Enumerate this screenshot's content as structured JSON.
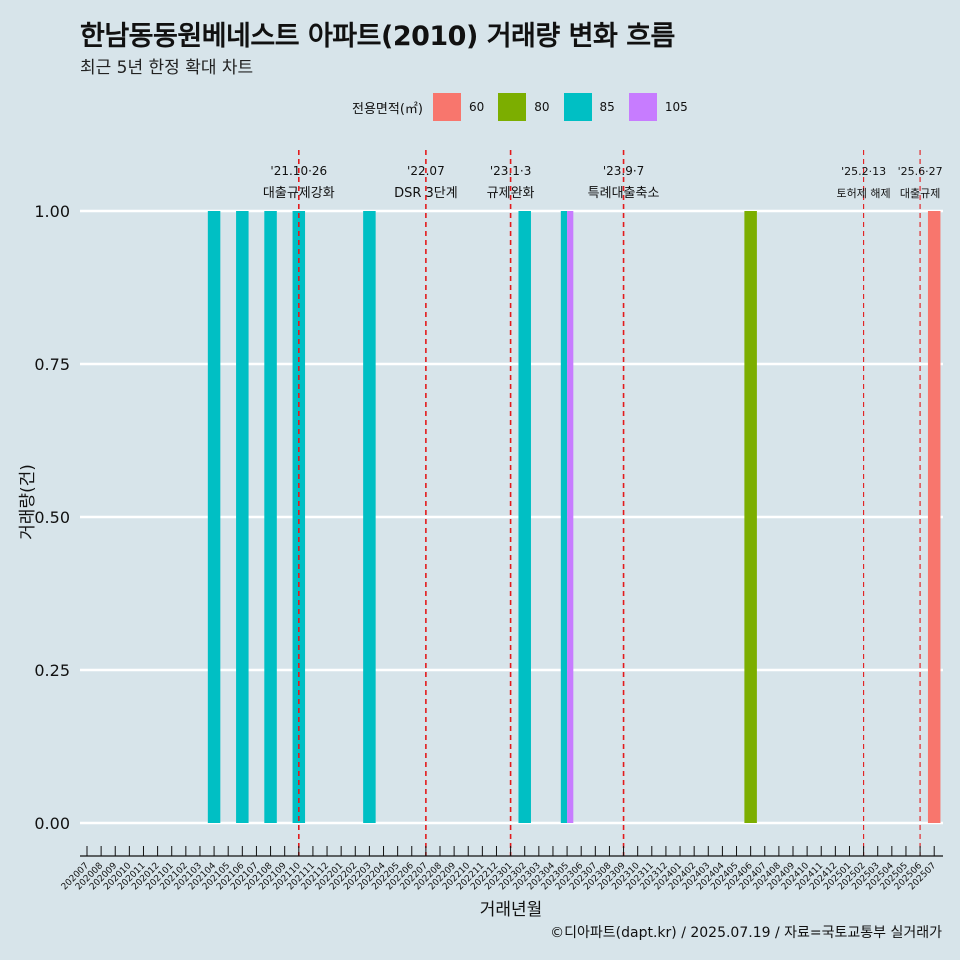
{
  "title": "한남동동원베네스트 아파트(2010) 거래량 변화 흐름",
  "subtitle": "최근 5년 한정 확대 차트",
  "legend_title": "전용면적(㎡)",
  "caption": "©디아파트(dapt.kr) / 2025.07.19 / 자료=국토교통부 실거래가",
  "chart_data": {
    "type": "bar",
    "xlabel": "거래년월",
    "ylabel": "거래량(건)",
    "ylim": [
      0,
      1
    ],
    "y_ticks": [
      "0.00",
      "0.25",
      "0.50",
      "0.75",
      "1.00"
    ],
    "grid": "horizontal major lines",
    "legend_position": "top",
    "categories": [
      "202007",
      "202008",
      "202009",
      "202010",
      "202011",
      "202012",
      "202101",
      "202102",
      "202103",
      "202104",
      "202105",
      "202106",
      "202107",
      "202108",
      "202109",
      "202110",
      "202111",
      "202112",
      "202201",
      "202202",
      "202203",
      "202204",
      "202205",
      "202206",
      "202207",
      "202208",
      "202209",
      "202210",
      "202211",
      "202212",
      "202301",
      "202302",
      "202303",
      "202304",
      "202305",
      "202306",
      "202307",
      "202308",
      "202309",
      "202310",
      "202311",
      "202312",
      "202401",
      "202402",
      "202403",
      "202404",
      "202405",
      "202406",
      "202407",
      "202408",
      "202409",
      "202410",
      "202411",
      "202412",
      "202501",
      "202502",
      "202503",
      "202504",
      "202505",
      "202506",
      "202507"
    ],
    "series": [
      {
        "name": "60",
        "color": "#f8766d",
        "points": [
          {
            "x": "202507",
            "y": 1
          }
        ]
      },
      {
        "name": "80",
        "color": "#7cae00",
        "points": [
          {
            "x": "202406",
            "y": 1
          }
        ]
      },
      {
        "name": "85",
        "color": "#00bfc4",
        "points": [
          {
            "x": "202104",
            "y": 1
          },
          {
            "x": "202106",
            "y": 1
          },
          {
            "x": "202108",
            "y": 1
          },
          {
            "x": "202110",
            "y": 1
          },
          {
            "x": "202203",
            "y": 1
          },
          {
            "x": "202302",
            "y": 1
          },
          {
            "x": "202305",
            "y": 1
          }
        ]
      },
      {
        "name": "105",
        "color": "#c77cff",
        "points": [
          {
            "x": "202305",
            "y": 1
          }
        ]
      }
    ],
    "annotations": [
      {
        "x": "202110",
        "date": "'21.10·26",
        "label": "대출규제강화"
      },
      {
        "x": "202207",
        "date": "'22.07",
        "label": "DSR 3단계"
      },
      {
        "x": "202301",
        "date": "'23.1·3",
        "label": "규제완화"
      },
      {
        "x": "202309",
        "date": "'23.9·7",
        "label": "특례대출축소"
      },
      {
        "x": "202502",
        "date": "'25.2·13",
        "label": "토허제 해제"
      },
      {
        "x": "202506",
        "date": "'25.6·27",
        "label": "대출규제"
      }
    ]
  }
}
